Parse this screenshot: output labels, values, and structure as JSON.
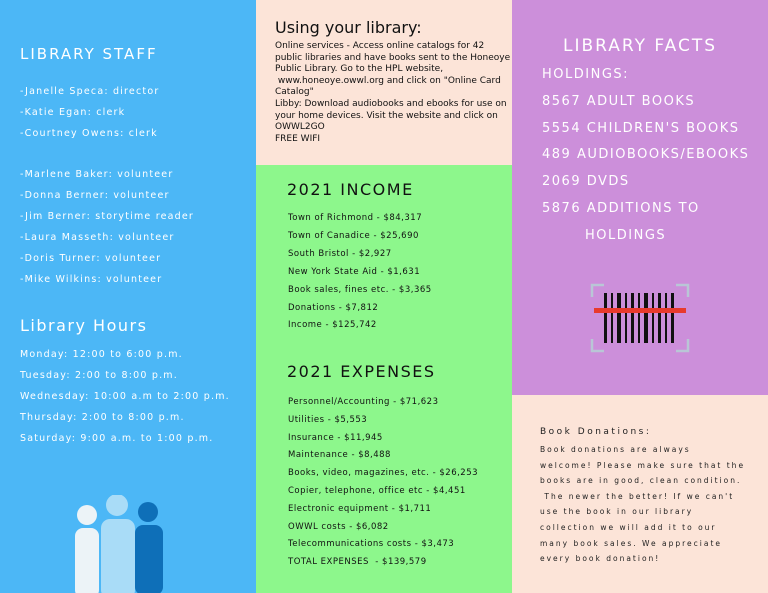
{
  "staff": {
    "title": "LIBRARY STAFF",
    "employees": [
      "-Janelle Speca: director",
      "-Katie Egan: clerk",
      "-Courtney Owens: clerk"
    ],
    "volunteers": [
      "-Marlene Baker: volunteer",
      "-Donna Berner: volunteer",
      "-Jim Berner: storytime reader",
      "-Laura Masseth: volunteer",
      "-Doris Turner: volunteer",
      "-Mike Wilkins: volunteer"
    ]
  },
  "hours": {
    "title": "Library Hours",
    "rows": [
      "Monday: 12:00 to 6:00 p.m.",
      "Tuesday: 2:00 to 8:00 p.m.",
      "Wednesday: 10:00 a.m to 2:00 p.m.",
      "Thursday: 2:00 to 8:00 p.m.",
      "Saturday: 9:00 a.m. to 1:00 p.m."
    ]
  },
  "usage": {
    "title": "Using your library:",
    "lines": [
      "Online services - Access online catalogs for 42",
      "public libraries and have books sent to the Honeoye",
      "Public Library. Go to the HPL website,",
      " www.honeoye.owwl.org and click on \"Online Card",
      "Catalog\"",
      "Libby: Download audiobooks and ebooks for use on",
      "your home devices. Visit the website and click on",
      "OWWL2GO",
      "FREE WIFI"
    ]
  },
  "income": {
    "title": "2021 INCOME",
    "items": [
      "Town of Richmond - $84,317",
      "Town of Canadice - $25,690",
      "South Bristol - $2,927",
      "New York State Aid - $1,631",
      "Book sales, fines etc. - $3,365",
      "Donations - $7,812",
      "Income - $125,742"
    ]
  },
  "expenses": {
    "title": "2021 EXPENSES",
    "items": [
      "Personnel/Accounting - $71,623",
      "Utilities - $5,553",
      "Insurance - $11,945",
      "Maintenance - $8,488",
      "Books, video, magazines, etc. - $26,253",
      "Copier, telephone, office etc - $4,451",
      "Electronic equipment - $1,711",
      "OWWL costs - $6,082",
      "Telecommunications costs - $3,473",
      "TOTAL EXPENSES  - $139,579"
    ]
  },
  "facts": {
    "title": "LIBRARY FACTS",
    "items": [
      "HOLDINGS:",
      "8567 ADULT BOOKS",
      "5554 CHILDREN'S BOOKS",
      "489 AUDIOBOOKS/EBOOKS",
      "2069 DVDS",
      "5876 ADDITIONS TO",
      "HOLDINGS"
    ]
  },
  "donations": {
    "title": "Book Donations:",
    "lines": [
      "Book donations are always",
      "welcome! Please make sure that the",
      "books are in good, clean condition.",
      " The newer the better! If we can't",
      "use the book in our library",
      "collection we will add it to our",
      "many book sales. We appreciate",
      "every book donation!"
    ]
  }
}
